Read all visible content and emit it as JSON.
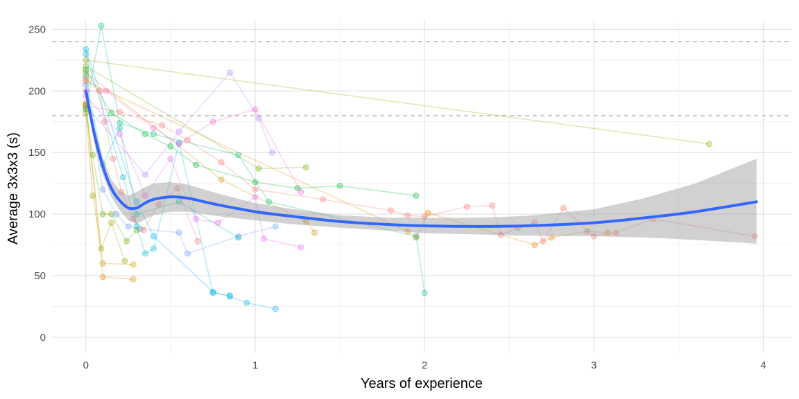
{
  "chart_data": {
    "type": "scatter",
    "title": "",
    "xlabel": "Years of experience",
    "ylabel": "Average 3x3x3 (s)",
    "xlim": [
      -0.2,
      4.17
    ],
    "ylim": [
      -13,
      257
    ],
    "x_ticks": [
      0,
      1,
      2,
      3,
      4
    ],
    "x_tick_labels": [
      "0",
      "1",
      "2",
      "3",
      "4"
    ],
    "y_ticks": [
      0,
      50,
      100,
      150,
      200,
      250
    ],
    "y_tick_labels": [
      "0",
      "50",
      "100",
      "150",
      "200",
      "250"
    ],
    "grid": true,
    "legend": "none",
    "reference_lines": [
      180,
      240
    ],
    "colors": {
      "smooth": "#3366ff",
      "ribbon": "#999999",
      "ref_line": "#bdbdbd",
      "grid_major": "#e3e3e3",
      "grid_minor": "#f1f1f1",
      "series": [
        "#f8766d",
        "#e58700",
        "#c99800",
        "#a3a500",
        "#6bb100",
        "#00ba38",
        "#00bf7d",
        "#00c0af",
        "#00bcd8",
        "#00b0f6",
        "#619cff",
        "#b983ff",
        "#e76bf3",
        "#fd61d1"
      ]
    },
    "smooth": {
      "x": [
        0,
        0.05,
        0.1,
        0.15,
        0.2,
        0.25,
        0.3,
        0.35,
        0.4,
        0.5,
        0.6,
        0.7,
        0.8,
        1.0,
        1.2,
        1.5,
        1.8,
        2.0,
        2.3,
        2.6,
        3.0,
        3.3,
        3.6,
        3.96
      ],
      "y": [
        200,
        165,
        139,
        121,
        111,
        105,
        105,
        109,
        112,
        114,
        113,
        110,
        107,
        102,
        98.5,
        94,
        91.5,
        90.5,
        90,
        90.5,
        93,
        97,
        102,
        110
      ]
    },
    "ribbon": {
      "x": [
        0,
        0.05,
        0.1,
        0.15,
        0.2,
        0.25,
        0.3,
        0.35,
        0.4,
        0.5,
        0.6,
        0.7,
        0.8,
        1.0,
        1.2,
        1.5,
        1.8,
        2.0,
        2.3,
        2.6,
        3.0,
        3.3,
        3.6,
        3.96
      ],
      "upper": [
        205,
        172,
        146,
        128,
        119,
        115,
        118,
        122,
        125,
        126,
        124,
        120,
        116,
        109,
        104.5,
        99,
        97,
        97,
        97,
        98.5,
        104,
        113,
        125,
        145
      ],
      "lower": [
        195,
        158,
        132,
        114,
        103,
        95,
        92,
        96,
        99,
        102,
        102,
        100,
        98,
        95,
        92,
        89,
        86.5,
        84.5,
        83.5,
        82.5,
        82,
        81,
        79,
        76
      ]
    },
    "series": [
      {
        "x": [
          0,
          0.2,
          0.45,
          0.6,
          0.8,
          1.0,
          1.4,
          1.8,
          1.9,
          2.0,
          2.25,
          2.4,
          2.45,
          2.55,
          2.65,
          2.7,
          2.82,
          3.0,
          3.13,
          3.35,
          3.95
        ],
        "y": [
          188,
          183,
          172,
          160,
          142,
          120,
          112,
          103,
          99,
          98,
          106,
          107,
          83,
          89,
          93,
          78,
          105,
          82,
          85,
          96,
          82
        ]
      },
      {
        "x": [
          0,
          1.9,
          1.95,
          2.02,
          2.65,
          2.75,
          2.96,
          3.08
        ],
        "y": [
          208,
          86,
          81,
          101,
          75,
          81,
          86,
          85
        ]
      },
      {
        "x": [
          0,
          0.8,
          1.3,
          1.35
        ],
        "y": [
          215,
          128,
          94,
          85
        ]
      },
      {
        "x": [
          0,
          3.68
        ],
        "y": [
          225,
          157
        ]
      },
      {
        "x": [
          0,
          1.02,
          1.3
        ],
        "y": [
          220,
          137,
          138
        ]
      },
      {
        "x": [
          0,
          0.15,
          0.35,
          0.5,
          0.65,
          1.0,
          1.25,
          1.5,
          1.95
        ],
        "y": [
          217,
          182,
          165,
          155,
          140,
          126,
          121,
          123,
          115
        ]
      },
      {
        "x": [
          0,
          0.09,
          0.2,
          0.4,
          0.9,
          1.08,
          1.95,
          2.0
        ],
        "y": [
          185,
          253,
          174,
          165,
          148,
          110,
          82,
          36
        ]
      },
      {
        "x": [
          0,
          0.1,
          0.2,
          0.3,
          0.55,
          0.9
        ],
        "y": [
          212,
          140,
          170,
          100,
          110,
          81
        ]
      },
      {
        "x": [
          0,
          0.22,
          0.3,
          0.35,
          0.4,
          0.55,
          0.75,
          0.85
        ],
        "y": [
          230,
          130,
          90,
          68,
          72,
          158,
          36,
          34
        ]
      },
      {
        "x": [
          0,
          0.3,
          0.4,
          0.75,
          0.85,
          0.95,
          1.12
        ],
        "y": [
          234,
          110,
          82,
          37,
          33,
          28,
          23
        ]
      },
      {
        "x": [
          0,
          0.1,
          0.18,
          0.25,
          0.32,
          0.55,
          0.6,
          0.9,
          1.12
        ],
        "y": [
          205,
          120,
          100,
          90,
          88,
          85,
          68,
          82,
          90
        ]
      },
      {
        "x": [
          0,
          0.35,
          0.55,
          0.85,
          1.02,
          1.1
        ],
        "y": [
          188,
          132,
          167,
          215,
          178,
          150
        ]
      },
      {
        "x": [
          0,
          0.2,
          0.35,
          0.5,
          0.65,
          0.78,
          1.0,
          1.05,
          1.27
        ],
        "y": [
          196,
          165,
          115,
          145,
          96,
          93,
          114,
          80,
          73
        ]
      },
      {
        "x": [
          0,
          0.12,
          0.4,
          0.55,
          0.75,
          1.0,
          1.27
        ],
        "y": [
          200,
          200,
          170,
          157,
          175,
          185,
          118
        ]
      },
      {
        "x": [
          0,
          0.08,
          0.11,
          0.16,
          0.21,
          0.28,
          0.34,
          0.43,
          0.54,
          0.66
        ],
        "y": [
          210,
          200,
          175,
          145,
          118,
          96,
          87,
          108,
          121,
          78
        ]
      },
      {
        "x": [
          0,
          0.1,
          0.28
        ],
        "y": [
          190,
          49,
          47
        ]
      },
      {
        "x": [
          0,
          0.1,
          0.28
        ],
        "y": [
          189,
          60,
          59
        ]
      },
      {
        "x": [
          0,
          0.04,
          0.09,
          0.15,
          0.23
        ],
        "y": [
          182,
          115,
          72,
          93,
          62
        ]
      },
      {
        "x": [
          0,
          0.04,
          0.1,
          0.15,
          0.24,
          0.3
        ],
        "y": [
          186,
          148,
          100,
          100,
          78,
          87
        ]
      }
    ]
  }
}
